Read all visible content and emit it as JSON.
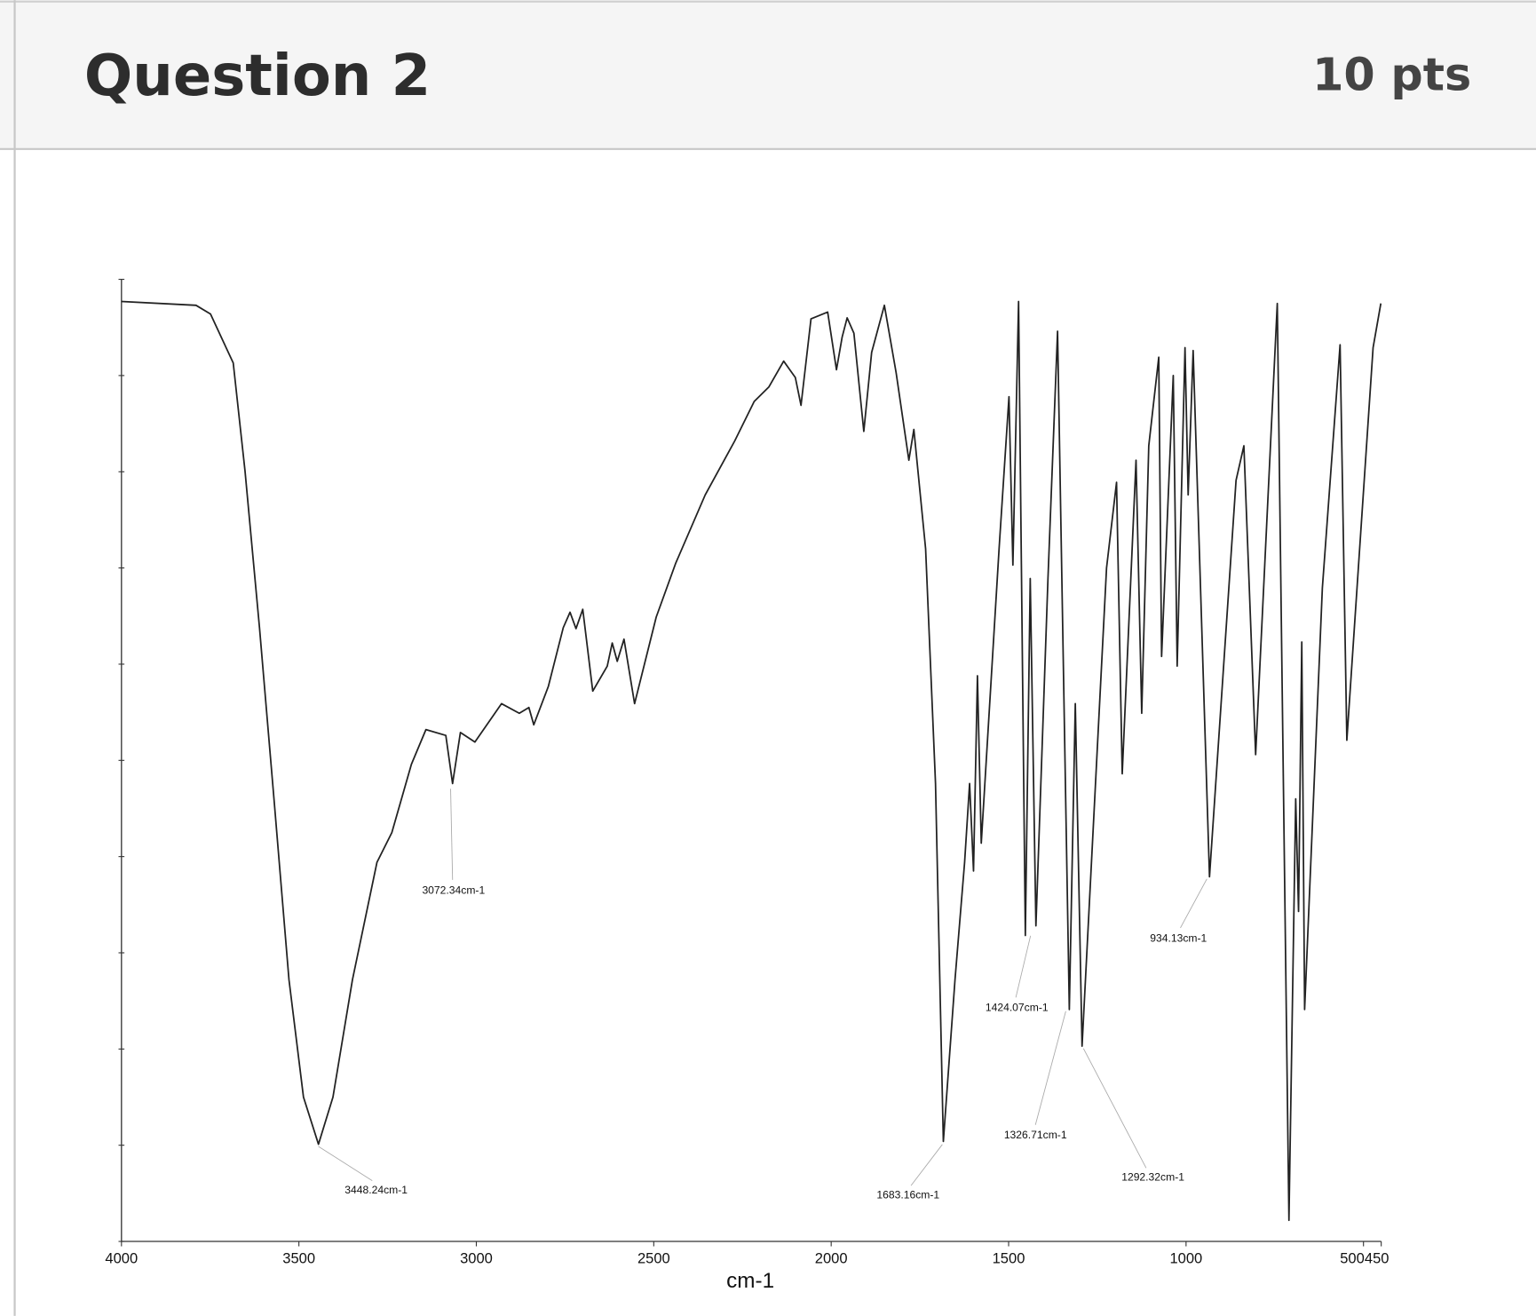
{
  "header": {
    "title": "Question 2",
    "points": "10 pts"
  },
  "chart_data": {
    "type": "line",
    "x_label": "cm-1",
    "x": [
      4000,
      3790,
      3749,
      3685,
      3652,
      3611,
      3569,
      3528,
      3487,
      3445,
      3404,
      3349,
      3280,
      3238,
      3183,
      3142,
      3086,
      3067,
      3045,
      3004,
      2929,
      2879,
      2852,
      2838,
      2797,
      2755,
      2736,
      2719,
      2700,
      2672,
      2631,
      2617,
      2603,
      2584,
      2554,
      2493,
      2438,
      2355,
      2272,
      2217,
      2176,
      2134,
      2101,
      2085,
      2057,
      2010,
      1985,
      1969,
      1955,
      1936,
      1908,
      1886,
      1850,
      1817,
      1781,
      1767,
      1734,
      1706,
      1684,
      1651,
      1624,
      1610,
      1599,
      1588,
      1577,
      1527,
      1499,
      1488,
      1472,
      1453,
      1439,
      1423,
      1389,
      1362,
      1329,
      1312,
      1293,
      1224,
      1196,
      1180,
      1141,
      1125,
      1105,
      1077,
      1069,
      1036,
      1025,
      1003,
      994,
      980,
      934,
      859,
      837,
      804,
      743,
      710,
      691,
      683,
      674,
      666,
      616,
      566,
      547,
      473,
      451
    ],
    "values": [
      97.7,
      97.3,
      96.4,
      91.3,
      80.1,
      63.8,
      45.5,
      27.2,
      15.0,
      10.1,
      15.0,
      27.2,
      39.4,
      42.5,
      49.6,
      53.2,
      52.6,
      47.6,
      52.9,
      51.9,
      55.9,
      54.9,
      55.5,
      53.7,
      57.7,
      63.8,
      65.4,
      63.7,
      65.7,
      57.2,
      59.8,
      62.2,
      60.3,
      62.6,
      55.9,
      64.9,
      70.5,
      77.6,
      83.2,
      87.3,
      88.8,
      91.5,
      89.8,
      86.9,
      95.9,
      96.6,
      90.6,
      94.0,
      96.0,
      94.4,
      84.2,
      92.4,
      97.3,
      90.3,
      81.2,
      84.4,
      72.0,
      47.6,
      10.4,
      27.2,
      39.4,
      47.6,
      38.5,
      58.8,
      41.4,
      72.0,
      87.8,
      70.3,
      97.7,
      31.8,
      68.9,
      32.8,
      68.9,
      94.6,
      24.1,
      55.9,
      20.3,
      70.0,
      78.9,
      48.6,
      81.2,
      54.9,
      82.7,
      91.9,
      60.8,
      90.0,
      59.8,
      92.9,
      77.6,
      92.6,
      37.9,
      79.1,
      82.7,
      50.6,
      97.5,
      2.2,
      46.0,
      34.3,
      62.3,
      24.1,
      67.9,
      93.2,
      52.1,
      92.9,
      97.5
    ],
    "color": "#222222",
    "xlim": [
      4000,
      450
    ],
    "xticks": [
      4000,
      3500,
      3000,
      2500,
      2000,
      1500,
      1000,
      500,
      450
    ],
    "ylim": [
      0,
      100
    ],
    "yticks": [
      0,
      10,
      20,
      30,
      40,
      50,
      60,
      70,
      80,
      90,
      100
    ],
    "annotations": [
      "3448.24cm-1",
      "3072.34cm-1",
      "1683.16cm-1",
      "1424.07cm-1",
      "1326.71cm-1",
      "1292.32cm-1",
      "934.13cm-1"
    ]
  }
}
